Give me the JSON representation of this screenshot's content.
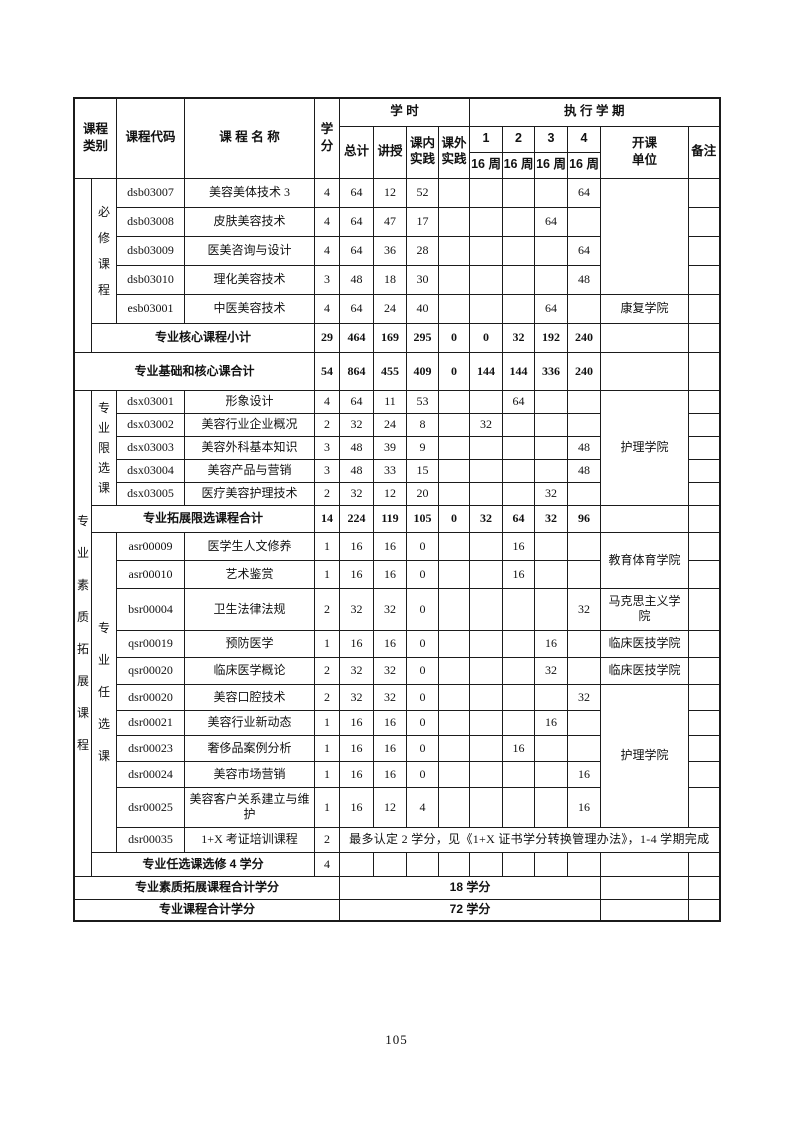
{
  "page": {
    "number": "105"
  },
  "header": {
    "category": "课程类别",
    "code": "课程代码",
    "name": "课 程 名 称",
    "credits": "学分",
    "hours_group": "学  时",
    "hours_cols": [
      "总计",
      "讲授",
      "课内实践",
      "课外实践"
    ],
    "semester_group": "执 行 学 期",
    "semester_nums": [
      "1",
      "2",
      "3",
      "4"
    ],
    "semester_weeks": [
      "16 周",
      "16 周",
      "16 周",
      "16 周"
    ],
    "unit": "开课单位",
    "note": "备注"
  },
  "sections": [
    {
      "outer_label": "",
      "inner_label": "必修课程",
      "courses": [
        {
          "code": "dsb03007",
          "name": "美容美体技术 3",
          "credits": "4",
          "total": "64",
          "lecture": "12",
          "in_practice": "52",
          "out_practice": "",
          "sems": [
            "",
            "",
            "",
            "64"
          ]
        },
        {
          "code": "dsb03008",
          "name": "皮肤美容技术",
          "credits": "4",
          "total": "64",
          "lecture": "47",
          "in_practice": "17",
          "out_practice": "",
          "sems": [
            "",
            "",
            "64",
            ""
          ]
        },
        {
          "code": "dsb03009",
          "name": "医美咨询与设计",
          "credits": "4",
          "total": "64",
          "lecture": "36",
          "in_practice": "28",
          "out_practice": "",
          "sems": [
            "",
            "",
            "",
            "64"
          ]
        },
        {
          "code": "dsb03010",
          "name": "理化美容技术",
          "credits": "3",
          "total": "48",
          "lecture": "18",
          "in_practice": "30",
          "out_practice": "",
          "sems": [
            "",
            "",
            "",
            "48"
          ]
        },
        {
          "code": "esb03001",
          "name": "中医美容技术",
          "credits": "4",
          "total": "64",
          "lecture": "24",
          "in_practice": "40",
          "out_practice": "",
          "sems": [
            "",
            "",
            "64",
            ""
          ]
        }
      ],
      "unit_groups": [
        {
          "span": 4,
          "label": ""
        },
        {
          "span": 1,
          "label": "康复学院"
        }
      ],
      "subtotal": {
        "label": "专业核心课程小计",
        "credits": "29",
        "total": "464",
        "lecture": "169",
        "in_practice": "295",
        "out_practice": "0",
        "sems": [
          "0",
          "32",
          "192",
          "240"
        ],
        "unit": "",
        "note": ""
      }
    },
    {
      "outer_label": "专业素质拓展课程",
      "inner_label": "专业限选课",
      "courses": [
        {
          "code": "dsx03001",
          "name": "形象设计",
          "credits": "4",
          "total": "64",
          "lecture": "11",
          "in_practice": "53",
          "out_practice": "",
          "sems": [
            "",
            "64",
            "",
            ""
          ]
        },
        {
          "code": "dsx03002",
          "name": "美容行业企业概况",
          "credits": "2",
          "total": "32",
          "lecture": "24",
          "in_practice": "8",
          "out_practice": "",
          "sems": [
            "32",
            "",
            "",
            ""
          ]
        },
        {
          "code": "dsx03003",
          "name": "美容外科基本知识",
          "credits": "3",
          "total": "48",
          "lecture": "39",
          "in_practice": "9",
          "out_practice": "",
          "sems": [
            "",
            "",
            "",
            "48"
          ]
        },
        {
          "code": "dsx03004",
          "name": "美容产品与营销",
          "credits": "3",
          "total": "48",
          "lecture": "33",
          "in_practice": "15",
          "out_practice": "",
          "sems": [
            "",
            "",
            "",
            "48"
          ]
        },
        {
          "code": "dsx03005",
          "name": "医疗美容护理技术",
          "credits": "2",
          "total": "32",
          "lecture": "12",
          "in_practice": "20",
          "out_practice": "",
          "sems": [
            "",
            "",
            "32",
            ""
          ]
        }
      ],
      "unit_groups": [
        {
          "span": 5,
          "label": "护理学院"
        }
      ],
      "subtotal": {
        "label": "专业拓展限选课程合计",
        "credits": "14",
        "total": "224",
        "lecture": "119",
        "in_practice": "105",
        "out_practice": "0",
        "sems": [
          "32",
          "64",
          "32",
          "96"
        ],
        "unit": "",
        "note": ""
      }
    },
    {
      "outer_label": "",
      "inner_label": "专业任选课",
      "courses": [
        {
          "code": "asr00009",
          "name": "医学生人文修养",
          "credits": "1",
          "total": "16",
          "lecture": "16",
          "in_practice": "0",
          "out_practice": "",
          "sems": [
            "",
            "16",
            "",
            ""
          ]
        },
        {
          "code": "asr00010",
          "name": "艺术鉴赏",
          "credits": "1",
          "total": "16",
          "lecture": "16",
          "in_practice": "0",
          "out_practice": "",
          "sems": [
            "",
            "16",
            "",
            ""
          ]
        },
        {
          "code": "bsr00004",
          "name": "卫生法律法规",
          "credits": "2",
          "total": "32",
          "lecture": "32",
          "in_practice": "0",
          "out_practice": "",
          "sems": [
            "",
            "",
            "",
            "32"
          ]
        },
        {
          "code": "qsr00019",
          "name": "预防医学",
          "credits": "1",
          "total": "16",
          "lecture": "16",
          "in_practice": "0",
          "out_practice": "",
          "sems": [
            "",
            "",
            "16",
            ""
          ]
        },
        {
          "code": "qsr00020",
          "name": "临床医学概论",
          "credits": "2",
          "total": "32",
          "lecture": "32",
          "in_practice": "0",
          "out_practice": "",
          "sems": [
            "",
            "",
            "32",
            ""
          ]
        },
        {
          "code": "dsr00020",
          "name": "美容口腔技术",
          "credits": "2",
          "total": "32",
          "lecture": "32",
          "in_practice": "0",
          "out_practice": "",
          "sems": [
            "",
            "",
            "",
            "32"
          ]
        },
        {
          "code": "dsr00021",
          "name": "美容行业新动态",
          "credits": "1",
          "total": "16",
          "lecture": "16",
          "in_practice": "0",
          "out_practice": "",
          "sems": [
            "",
            "",
            "16",
            ""
          ]
        },
        {
          "code": "dsr00023",
          "name": "奢侈品案例分析",
          "credits": "1",
          "total": "16",
          "lecture": "16",
          "in_practice": "0",
          "out_practice": "",
          "sems": [
            "",
            "16",
            "",
            ""
          ]
        },
        {
          "code": "dsr00024",
          "name": "美容市场营销",
          "credits": "1",
          "total": "16",
          "lecture": "16",
          "in_practice": "0",
          "out_practice": "",
          "sems": [
            "",
            "",
            "",
            "16"
          ]
        },
        {
          "code": "dsr00025",
          "name": "美容客户关系建立与维护",
          "credits": "1",
          "total": "16",
          "lecture": "12",
          "in_practice": "4",
          "out_practice": "",
          "sems": [
            "",
            "",
            "",
            "16"
          ]
        },
        {
          "code": "dsr00035",
          "name": "1+X 考证培训课程",
          "credits": "2",
          "note_merged": "最多认定 2 学分，见《1+X 证书学分转换管理办法》，1-4 学期完成"
        }
      ],
      "unit_groups": [
        {
          "span": 2,
          "label": "教育体育学院"
        },
        {
          "span": 1,
          "label": "马克思主义学院"
        },
        {
          "span": 1,
          "label": "临床医技学院"
        },
        {
          "span": 1,
          "label": "临床医技学院"
        },
        {
          "span": 5,
          "label": "护理学院"
        }
      ],
      "subtotal": {
        "label": "专业任选课选修 4 学分",
        "credits": "4"
      }
    }
  ],
  "grand_row": {
    "label": "专业基础和核心课合计",
    "credits": "54",
    "total": "864",
    "lecture": "455",
    "in_practice": "409",
    "out_practice": "0",
    "sems": [
      "144",
      "144",
      "336",
      "240"
    ],
    "unit": "",
    "note": ""
  },
  "bottom_rows": [
    {
      "label": "专业素质拓展课程合计学分",
      "value": "18 学分"
    },
    {
      "label": "专业课程合计学分",
      "value": "72 学分"
    }
  ]
}
